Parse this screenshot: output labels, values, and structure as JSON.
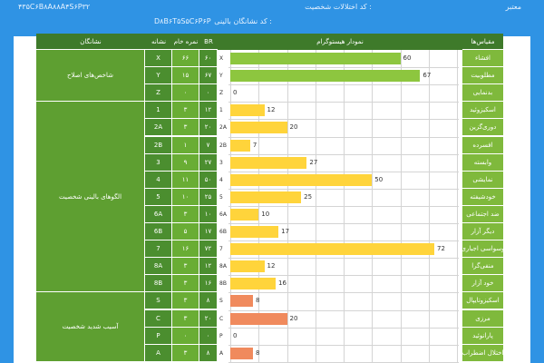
{
  "header": {
    "title_left": "معتبر",
    "personality_code_label": "کد اختلالات شخصیت :",
    "personality_code": "۴۳۵C۶B۸A۸۸A۴S۶P۳۲",
    "clinical_code_label": "کد نشانگان بالینی :",
    "clinical_code": "D۸B۶T۵S۵C۶P۶P"
  },
  "columns": {
    "br": "BR",
    "raw": "نمره خام",
    "sign": "نشانه",
    "indicators": "نشانگان",
    "histogram": "نمودار هیستوگرام",
    "scales": "مقیاس‌ها"
  },
  "groups": [
    {
      "label": "شاخص‌های اصلاح"
    },
    {
      "label": "الگوهای بالینی شخصیت"
    },
    {
      "label": "آسیب شدید شخصیت"
    }
  ],
  "rows": [
    {
      "scale": "افشاء",
      "sign": "X",
      "raw": "۶۶",
      "br": "۶۰",
      "letter": "X"
    },
    {
      "scale": "مطلوبیت",
      "sign": "Y",
      "raw": "۱۵",
      "br": "۶۷",
      "letter": "Y"
    },
    {
      "scale": "بدنمایی",
      "sign": "Z",
      "raw": "۰",
      "br": "۰",
      "letter": "Z"
    },
    {
      "scale": "اسکیزوئید",
      "sign": "1",
      "raw": "۳",
      "br": "۱۲",
      "letter": "1"
    },
    {
      "scale": "دوری‌گزین",
      "sign": "2A",
      "raw": "۳",
      "br": "۲۰",
      "letter": "2A"
    },
    {
      "scale": "افسرده",
      "sign": "2B",
      "raw": "۱",
      "br": "۷",
      "letter": "2B"
    },
    {
      "scale": "وابسته",
      "sign": "3",
      "raw": "۹",
      "br": "۲۷",
      "letter": "3"
    },
    {
      "scale": "نمایشی",
      "sign": "4",
      "raw": "۱۱",
      "br": "۵۰",
      "letter": "4"
    },
    {
      "scale": "خودشیفته",
      "sign": "5",
      "raw": "۱۰",
      "br": "۲۵",
      "letter": "5"
    },
    {
      "scale": "ضد اجتماعی",
      "sign": "6A",
      "raw": "۳",
      "br": "۱۰",
      "letter": "6A"
    },
    {
      "scale": "دیگر آزار",
      "sign": "6B",
      "raw": "۵",
      "br": "۱۷",
      "letter": "6B"
    },
    {
      "scale": "وسواسی اجباری",
      "sign": "7",
      "raw": "۱۶",
      "br": "۷۲",
      "letter": "7"
    },
    {
      "scale": "منفی‌گرا",
      "sign": "8A",
      "raw": "۳",
      "br": "۱۲",
      "letter": "8A"
    },
    {
      "scale": "خود آزار",
      "sign": "8B",
      "raw": "۳",
      "br": "۱۶",
      "letter": "8B"
    },
    {
      "scale": "اسکیزوتایپال",
      "sign": "S",
      "raw": "۳",
      "br": "۸",
      "letter": "S"
    },
    {
      "scale": "مرزی",
      "sign": "C",
      "raw": "۳",
      "br": "۲۰",
      "letter": "C"
    },
    {
      "scale": "پارانوئید",
      "sign": "P",
      "raw": "۰",
      "br": "۰",
      "letter": "P"
    },
    {
      "scale": "اختلال اضطراب",
      "sign": "A",
      "raw": "۳",
      "br": "۸",
      "letter": "A"
    }
  ],
  "chart_data": {
    "type": "bar",
    "orientation": "horizontal",
    "title": "نمودار هیستوگرام",
    "categories": [
      "X",
      "Y",
      "Z",
      "1",
      "2A",
      "2B",
      "3",
      "4",
      "5",
      "6A",
      "6B",
      "7",
      "8A",
      "8B",
      "S",
      "C",
      "P",
      "A"
    ],
    "values": [
      60,
      67,
      0,
      12,
      20,
      7,
      27,
      50,
      25,
      10,
      17,
      72,
      12,
      16,
      8,
      20,
      0,
      8
    ],
    "xlim": [
      0,
      80
    ],
    "ticks": [
      0,
      10,
      20,
      30,
      40,
      50,
      60,
      70,
      80
    ],
    "colors": {
      "modifying": "#8dc63f",
      "clinical": "#ffd43b",
      "severe": "#f08a5d"
    },
    "grid": true
  }
}
